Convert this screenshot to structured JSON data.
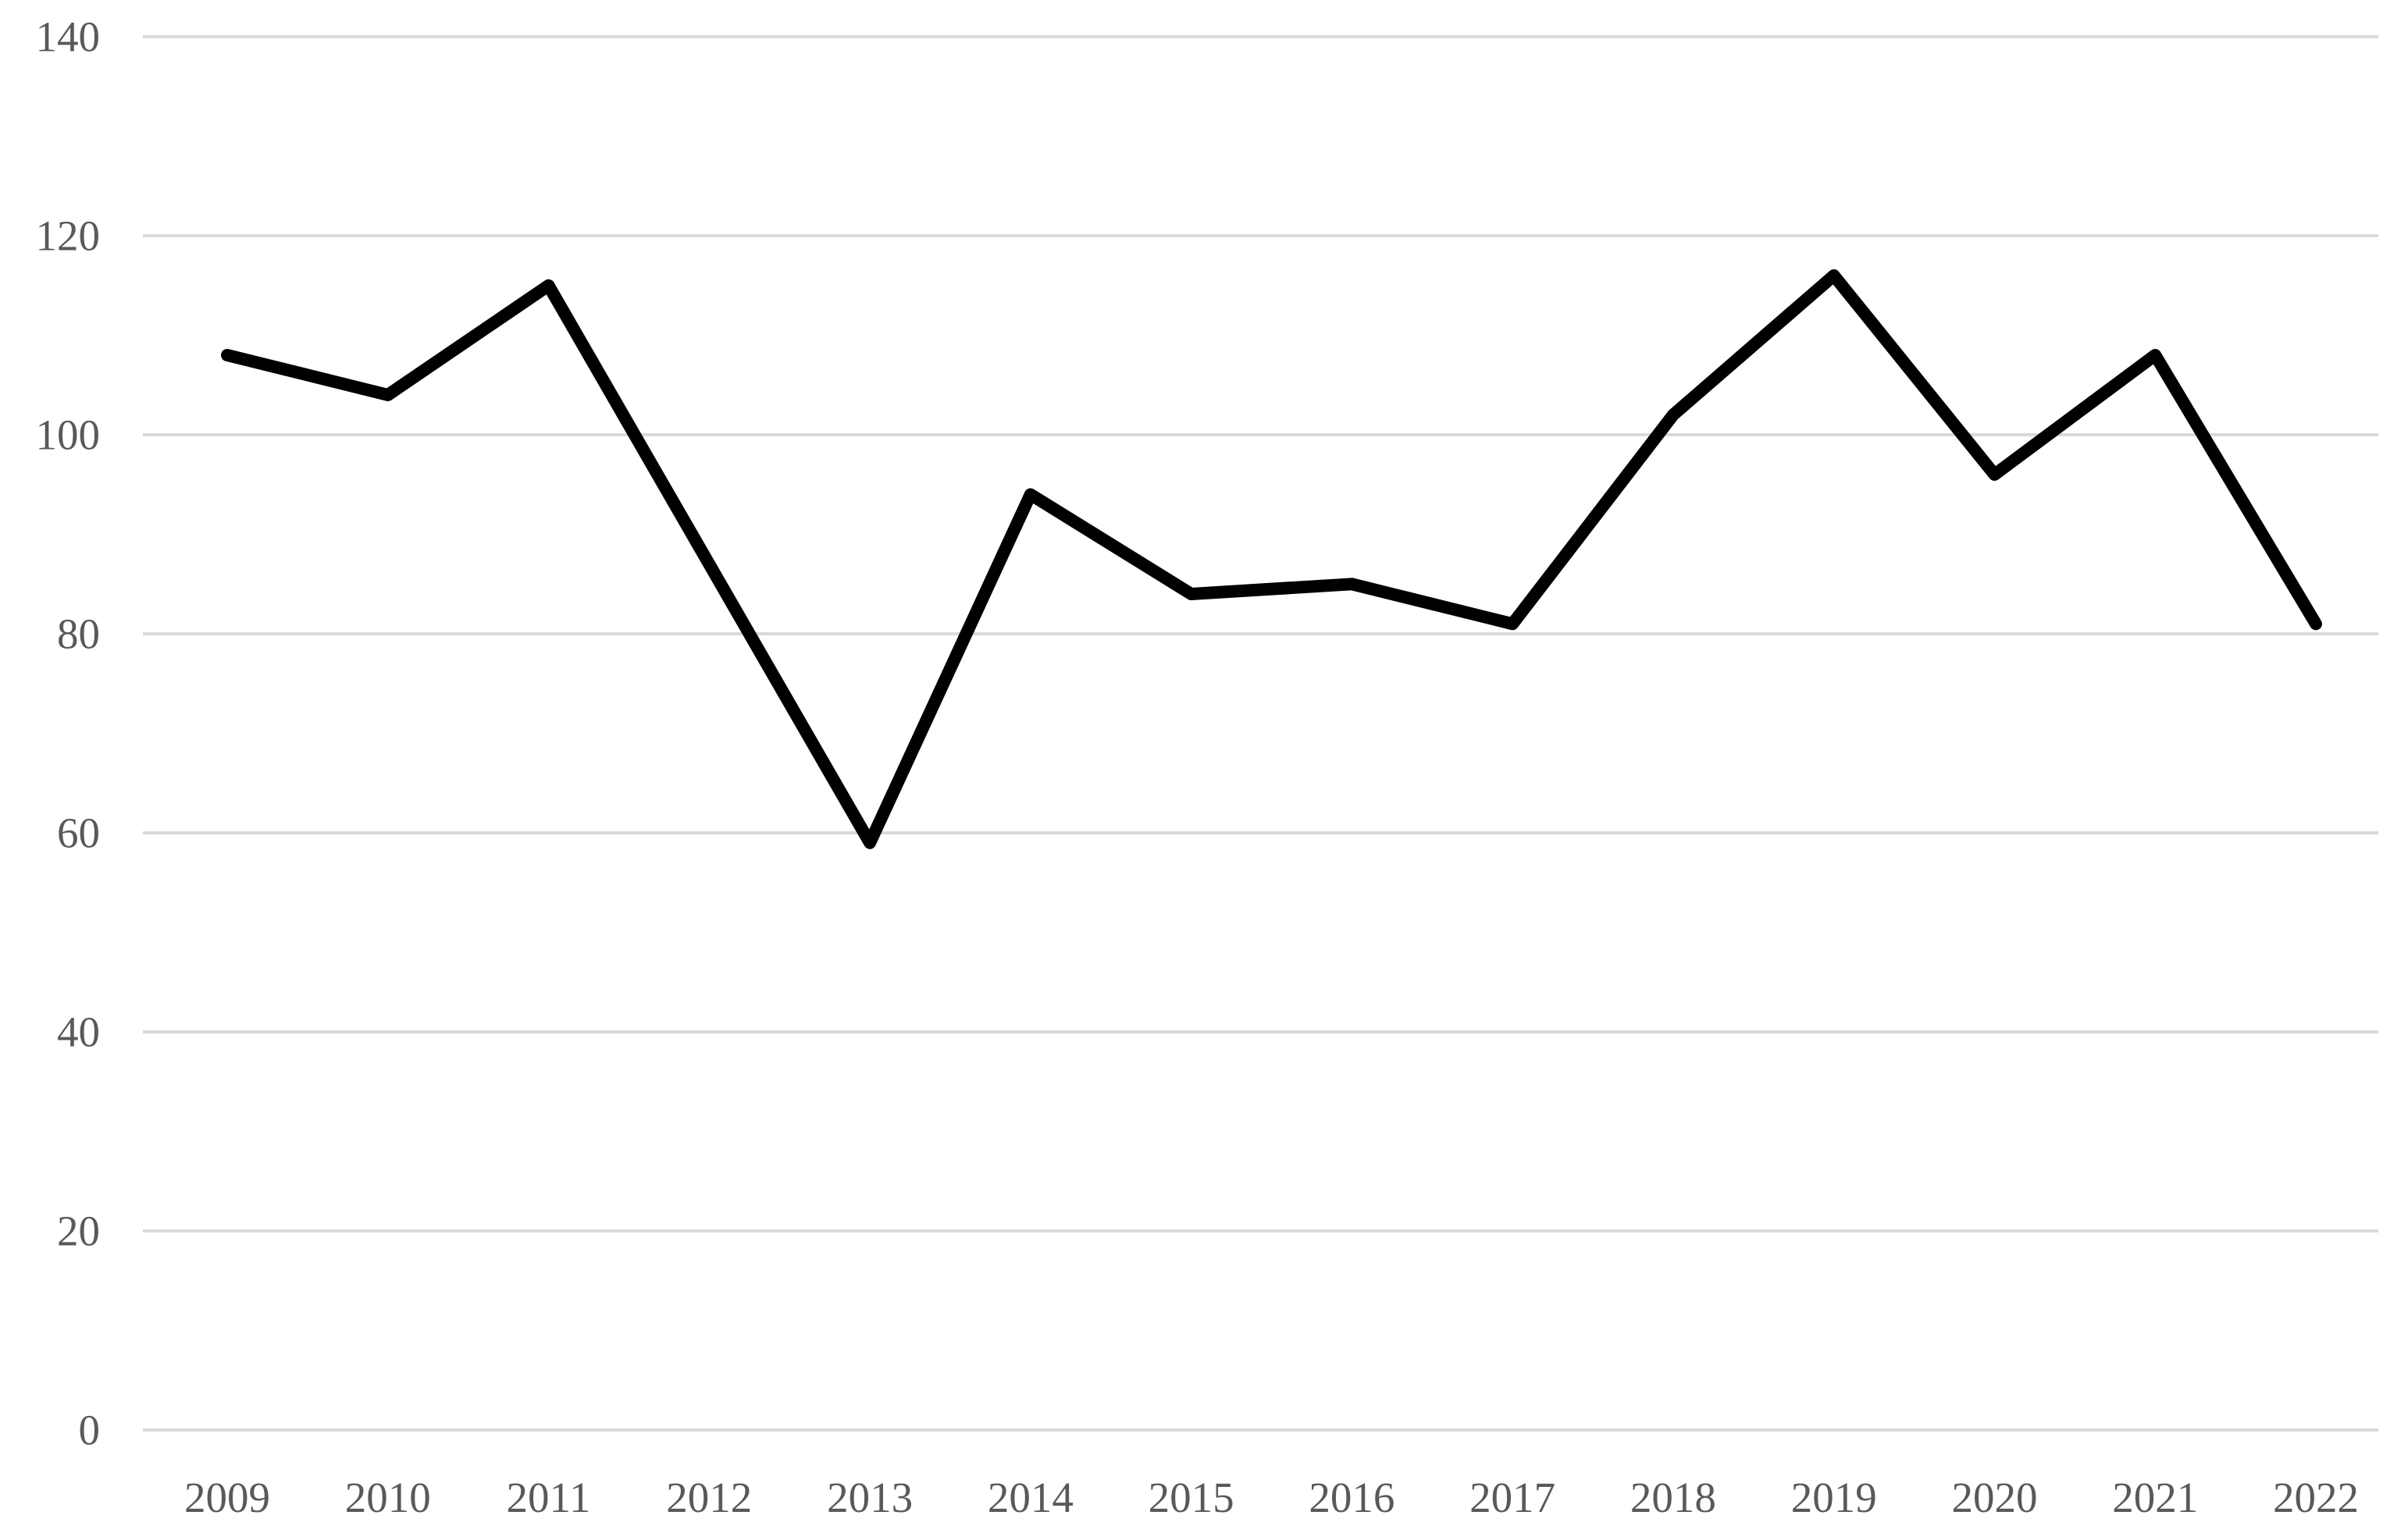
{
  "chart_data": {
    "type": "line",
    "title": "",
    "xlabel": "",
    "ylabel": "",
    "categories": [
      "2009",
      "2010",
      "2011",
      "2012",
      "2013",
      "2014",
      "2015",
      "2016",
      "2017",
      "2018",
      "2019",
      "2020",
      "2021",
      "2022"
    ],
    "values": [
      108,
      104,
      115,
      87,
      59,
      94,
      84,
      85,
      81,
      102,
      116,
      96,
      108,
      81
    ],
    "series_name": "",
    "ylim": [
      0,
      140
    ],
    "yticks": [
      0,
      20,
      40,
      60,
      80,
      100,
      120,
      140
    ],
    "grid": "horizontal-only",
    "legend_position": "none",
    "colors": {
      "line": "#000000",
      "gridline": "#d9d9d9",
      "tick_label": "#595959",
      "background": "#ffffff"
    }
  }
}
